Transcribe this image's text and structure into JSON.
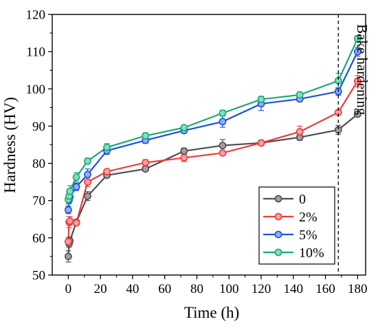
{
  "chart_data": {
    "type": "line",
    "xlabel": "Time (h)",
    "ylabel": "Hardness (HV)",
    "xlim": [
      -10,
      185
    ],
    "ylim": [
      50,
      120
    ],
    "xticks": [
      0,
      20,
      40,
      60,
      80,
      100,
      120,
      140,
      160,
      180
    ],
    "yticks": [
      50,
      60,
      70,
      80,
      90,
      100,
      110,
      120
    ],
    "grid": false,
    "legend_position": "bottom-right",
    "annotation": {
      "text": "Bake hardening",
      "x": 168
    },
    "series": [
      {
        "name": "0",
        "color": "#4d4d4d",
        "marker_fill": "#a0a0a0",
        "x": [
          0,
          0.5,
          1,
          5,
          12,
          24,
          48,
          72,
          96,
          120,
          144,
          168,
          180
        ],
        "y": [
          55.0,
          58.5,
          59.2,
          64.2,
          71.2,
          76.8,
          78.5,
          83.3,
          84.8,
          85.5,
          87.0,
          89.0,
          93.2
        ],
        "err": [
          1.5,
          1.0,
          1.0,
          0.5,
          1.2,
          0.6,
          0.6,
          0.8,
          1.6,
          0.7,
          0.8,
          1.2,
          0.5
        ]
      },
      {
        "name": "2%",
        "color": "#ee3b3b",
        "marker_fill": "#ff9f9f",
        "x": [
          0,
          0.5,
          1,
          5,
          12,
          24,
          48,
          72,
          96,
          120,
          144,
          168,
          180
        ],
        "y": [
          59.0,
          64.2,
          64.5,
          64.0,
          75.0,
          77.8,
          80.2,
          81.5,
          82.8,
          85.5,
          88.5,
          93.7,
          102.1
        ],
        "err": [
          1.0,
          1.5,
          1.2,
          0.5,
          1.2,
          0.6,
          0.8,
          1.0,
          0.6,
          0.6,
          1.5,
          0.5,
          1.5
        ]
      },
      {
        "name": "5%",
        "color": "#1f4fd8",
        "marker_fill": "#8fb0ff",
        "x": [
          0,
          0.5,
          1,
          5,
          12,
          24,
          48,
          72,
          96,
          120,
          144,
          168,
          180
        ],
        "y": [
          67.5,
          70.2,
          71.0,
          73.7,
          77.0,
          83.4,
          86.2,
          88.8,
          91.2,
          96.0,
          97.3,
          99.3,
          110.0
        ],
        "err": [
          1.0,
          1.0,
          1.0,
          1.0,
          1.5,
          1.0,
          0.8,
          0.6,
          1.5,
          1.8,
          0.7,
          1.0,
          1.2
        ]
      },
      {
        "name": "10%",
        "color": "#18a878",
        "marker_fill": "#7fe0bc",
        "x": [
          0,
          0.5,
          1,
          5,
          12,
          24,
          48,
          72,
          96,
          120,
          144,
          168,
          180
        ],
        "y": [
          70.3,
          71.2,
          72.5,
          76.3,
          80.6,
          84.3,
          87.4,
          89.6,
          93.5,
          97.2,
          98.4,
          102.2,
          113.5
        ],
        "err": [
          1.2,
          1.8,
          1.5,
          1.2,
          0.8,
          1.0,
          0.8,
          0.6,
          0.8,
          0.8,
          0.8,
          2.0,
          0.8
        ]
      }
    ]
  }
}
